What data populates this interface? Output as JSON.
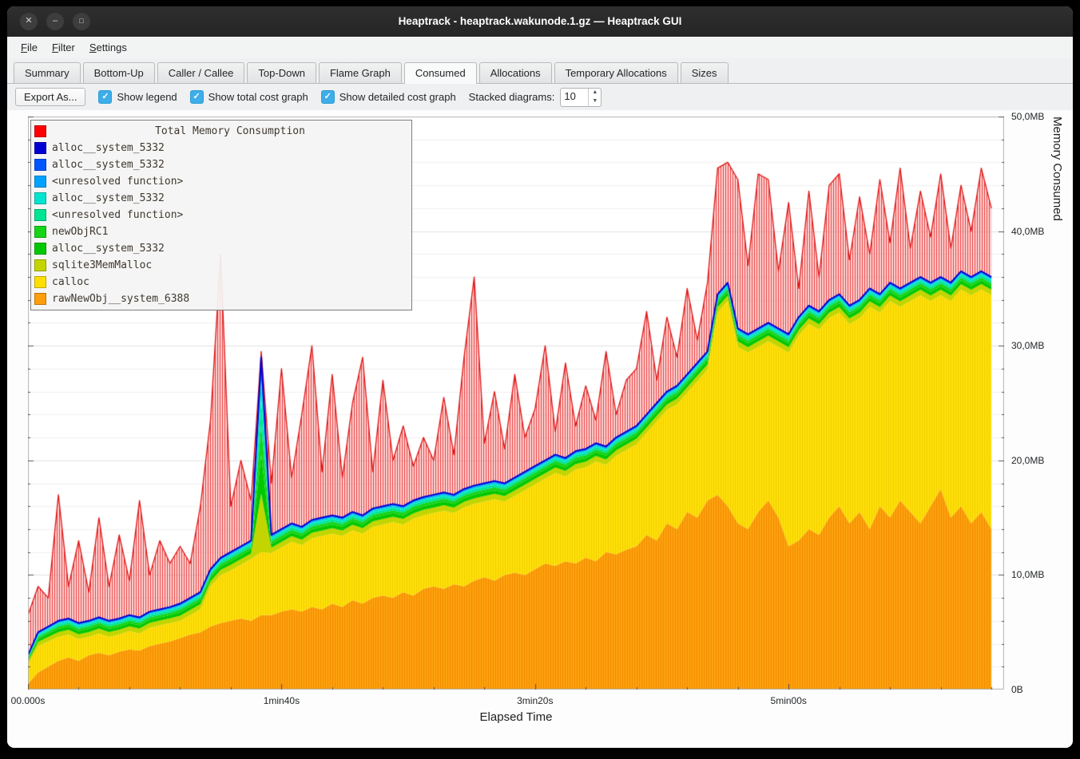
{
  "window": {
    "title": "Heaptrack - heaptrack.wakunode.1.gz — Heaptrack GUI",
    "controls": [
      {
        "name": "close",
        "glyph": "✕"
      },
      {
        "name": "minimize",
        "glyph": "–"
      },
      {
        "name": "maximize",
        "glyph": "□"
      }
    ]
  },
  "menu": {
    "items": [
      {
        "label": "File"
      },
      {
        "label": "Filter"
      },
      {
        "label": "Settings"
      }
    ]
  },
  "tabs": {
    "active": "Consumed",
    "items": [
      {
        "label": "Summary"
      },
      {
        "label": "Bottom-Up"
      },
      {
        "label": "Caller / Callee"
      },
      {
        "label": "Top-Down"
      },
      {
        "label": "Flame Graph"
      },
      {
        "label": "Consumed"
      },
      {
        "label": "Allocations"
      },
      {
        "label": "Temporary Allocations"
      },
      {
        "label": "Sizes"
      }
    ]
  },
  "toolbar": {
    "export_label": "Export As...",
    "check_glyph": "✓",
    "checkboxes": [
      {
        "label": "Show legend",
        "checked": true
      },
      {
        "label": "Show total cost graph",
        "checked": true
      },
      {
        "label": "Show detailed cost graph",
        "checked": true
      }
    ],
    "stacked_label": "Stacked diagrams:",
    "stacked_value": "10"
  },
  "legend": {
    "title": "Total Memory Consumption",
    "title_color": "#ff0000",
    "items": [
      {
        "color": "#0000d2",
        "label": "alloc__system_5332"
      },
      {
        "color": "#0055ff",
        "label": "alloc__system_5332"
      },
      {
        "color": "#00a2ff",
        "label": "<unresolved function>"
      },
      {
        "color": "#00e5cf",
        "label": "alloc__system_5332"
      },
      {
        "color": "#00e593",
        "label": "<unresolved function>"
      },
      {
        "color": "#16d416",
        "label": "newObjRC1"
      },
      {
        "color": "#00c800",
        "label": "alloc__system_5332"
      },
      {
        "color": "#c3d500",
        "label": "sqlite3MemMalloc"
      },
      {
        "color": "#ffdf00",
        "label": "calloc"
      },
      {
        "color": "#ff9d0a",
        "label": "rawNewObj__system_6388"
      }
    ]
  },
  "chart_data": {
    "type": "area",
    "title": "Total Memory Consumption",
    "xlabel": "Elapsed Time",
    "ylabel": "Memory Consumed",
    "xlim": [
      0,
      385
    ],
    "ylim": [
      0,
      50
    ],
    "x_step": 4,
    "x_ticks": [
      {
        "v": 0,
        "label": "00.000s"
      },
      {
        "v": 100,
        "label": "1min40s"
      },
      {
        "v": 200,
        "label": "3min20s"
      },
      {
        "v": 300,
        "label": "5min00s"
      }
    ],
    "y_ticks": [
      {
        "v": 0,
        "label": "0B"
      },
      {
        "v": 10,
        "label": "10,0MB"
      },
      {
        "v": 20,
        "label": "20,0MB"
      },
      {
        "v": 30,
        "label": "30,0MB"
      },
      {
        "v": 40,
        "label": "40,0MB"
      },
      {
        "v": 50,
        "label": "50,0MB"
      }
    ],
    "grid": {
      "minor_step": 2,
      "major_step": 10,
      "minor_color": "#f0f0f0",
      "major_color": "#e2e2e2"
    },
    "series": [
      {
        "name": "rawNewObj__system_6388",
        "color": "#ff9d0a",
        "cumulative_values": [
          0.5,
          1.5,
          2.0,
          2.5,
          2.8,
          2.5,
          3.0,
          3.2,
          3.0,
          3.3,
          3.5,
          3.4,
          3.8,
          4.0,
          4.2,
          4.5,
          4.8,
          5.0,
          5.5,
          5.8,
          6.0,
          6.2,
          6.0,
          6.5,
          6.5,
          6.8,
          7.0,
          6.8,
          7.2,
          7.0,
          7.5,
          7.2,
          7.8,
          7.5,
          8.0,
          8.2,
          8.0,
          8.5,
          8.2,
          8.8,
          9.0,
          8.8,
          9.2,
          9.0,
          9.5,
          9.8,
          9.5,
          10.0,
          10.2,
          10.0,
          10.5,
          11.0,
          10.8,
          11.2,
          11.0,
          11.5,
          11.2,
          12.0,
          11.8,
          12.2,
          12.5,
          13.5,
          13.0,
          14.5,
          14.0,
          15.5,
          15.0,
          16.5,
          17.0,
          16.0,
          14.5,
          14.0,
          15.5,
          16.5,
          15.0,
          12.5,
          13.0,
          14.0,
          13.5,
          15.0,
          16.0,
          14.5,
          15.5,
          14.0,
          16.0,
          15.0,
          16.5,
          15.5,
          14.5,
          16.0,
          17.5,
          15.0,
          16.0,
          14.5,
          15.5,
          14.0
        ]
      },
      {
        "name": "calloc",
        "color": "#ffdf00",
        "cumulative_values": [
          2.2,
          3.8,
          4.2,
          4.6,
          4.8,
          4.4,
          4.6,
          4.9,
          4.6,
          4.8,
          5.1,
          4.9,
          5.4,
          5.6,
          5.8,
          6.0,
          6.5,
          7.0,
          9.0,
          10.0,
          10.4,
          10.9,
          11.4,
          12.0,
          11.9,
          12.4,
          12.9,
          12.6,
          13.2,
          13.4,
          13.6,
          13.4,
          13.9,
          13.6,
          14.2,
          14.4,
          14.6,
          14.4,
          14.9,
          15.2,
          15.4,
          15.6,
          15.4,
          15.9,
          16.2,
          16.4,
          16.6,
          16.4,
          16.9,
          17.4,
          17.9,
          18.4,
          18.9,
          18.6,
          19.2,
          19.4,
          19.9,
          19.6,
          20.4,
          20.9,
          21.4,
          22.4,
          23.4,
          24.4,
          24.9,
          25.9,
          26.9,
          27.9,
          32.9,
          33.9,
          29.9,
          29.4,
          29.9,
          30.4,
          29.9,
          29.4,
          30.9,
          31.9,
          31.4,
          32.4,
          32.9,
          31.9,
          32.4,
          33.4,
          32.9,
          33.9,
          33.4,
          33.9,
          34.4,
          33.9,
          34.4,
          33.9,
          34.9,
          34.4,
          34.9,
          34.4
        ]
      },
      {
        "name": "alloc__system_5332 stack top",
        "color": "#0055ff",
        "cumulative_values": [
          3.0,
          5.0,
          5.5,
          6.0,
          6.2,
          5.8,
          6.0,
          6.3,
          6.0,
          6.2,
          6.5,
          6.3,
          6.8,
          7.0,
          7.2,
          7.5,
          8.0,
          8.5,
          10.5,
          11.5,
          12.0,
          12.5,
          13.0,
          29.0,
          13.5,
          14.0,
          14.5,
          14.2,
          14.8,
          15.0,
          15.2,
          15.0,
          15.5,
          15.2,
          15.8,
          16.0,
          16.2,
          16.0,
          16.5,
          16.8,
          17.0,
          17.2,
          17.0,
          17.5,
          17.8,
          18.0,
          18.2,
          18.0,
          18.5,
          19.0,
          19.5,
          20.0,
          20.5,
          20.2,
          20.8,
          21.0,
          21.5,
          21.2,
          22.0,
          22.5,
          23.0,
          24.0,
          25.0,
          26.0,
          26.5,
          27.5,
          28.5,
          29.5,
          34.5,
          35.5,
          31.5,
          31.0,
          31.5,
          32.0,
          31.5,
          31.0,
          32.5,
          33.5,
          33.0,
          34.0,
          34.5,
          33.5,
          34.0,
          35.0,
          34.5,
          35.5,
          35.0,
          35.5,
          36.0,
          35.5,
          36.0,
          35.5,
          36.5,
          36.0,
          36.5,
          36.0
        ]
      },
      {
        "name": "Total Memory Consumption",
        "color": "#ff0000",
        "cumulative_values": [
          6.5,
          9.0,
          8.0,
          17.0,
          9.0,
          13.0,
          8.5,
          15.0,
          9.0,
          13.5,
          9.5,
          16.5,
          10.0,
          13.0,
          11.0,
          12.5,
          11.0,
          16.0,
          23.5,
          38.0,
          16.0,
          20.0,
          16.5,
          29.5,
          18.0,
          28.0,
          18.5,
          24.0,
          30.0,
          19.0,
          27.5,
          18.5,
          25.0,
          29.0,
          19.0,
          27.0,
          20.0,
          23.0,
          19.5,
          22.0,
          20.0,
          25.5,
          20.5,
          29.0,
          36.0,
          21.5,
          26.0,
          21.0,
          27.5,
          22.0,
          24.5,
          30.0,
          22.5,
          28.5,
          23.0,
          26.5,
          23.5,
          29.5,
          24.0,
          27.0,
          28.0,
          33.0,
          27.0,
          32.5,
          29.0,
          35.0,
          30.5,
          35.5,
          45.5,
          46.0,
          44.5,
          37.0,
          45.0,
          44.5,
          36.5,
          42.5,
          35.0,
          43.5,
          36.0,
          44.0,
          45.0,
          37.5,
          43.0,
          38.0,
          44.5,
          39.0,
          45.5,
          38.5,
          43.5,
          39.5,
          45.0,
          38.5,
          44.0,
          40.0,
          45.5,
          42.0
        ]
      }
    ],
    "overlays": [
      {
        "label": "sqlite3MemMalloc",
        "color": "#c3d500",
        "frac_to": 0.3
      },
      {
        "label": "alloc__system_5332",
        "color": "#00c800",
        "frac_to": 0.5
      },
      {
        "label": "newObjRC1",
        "color": "#16d416",
        "frac_to": 0.65
      },
      {
        "label": "<unresolved function>",
        "color": "#00e593",
        "frac_to": 0.78
      },
      {
        "label": "alloc__system_5332",
        "color": "#00e5cf",
        "frac_to": 0.88
      },
      {
        "label": "<unresolved function>",
        "color": "#00a2ff",
        "frac_to": 0.95
      },
      {
        "label": "alloc__system_5332",
        "color": "#0055ff",
        "frac_to": 1.0
      }
    ],
    "stack_line_color": "#0000d2",
    "total_line_color": "#e01414",
    "area_patterns": {
      "orange": {
        "base": "#ffa30f",
        "line": "#f08a00"
      },
      "yellow": {
        "base": "#ffe10a",
        "line": "#f2cf00"
      },
      "red": {
        "base": "rgba(255,160,160,0.45)",
        "line": "rgba(225,35,35,0.85)"
      }
    }
  }
}
